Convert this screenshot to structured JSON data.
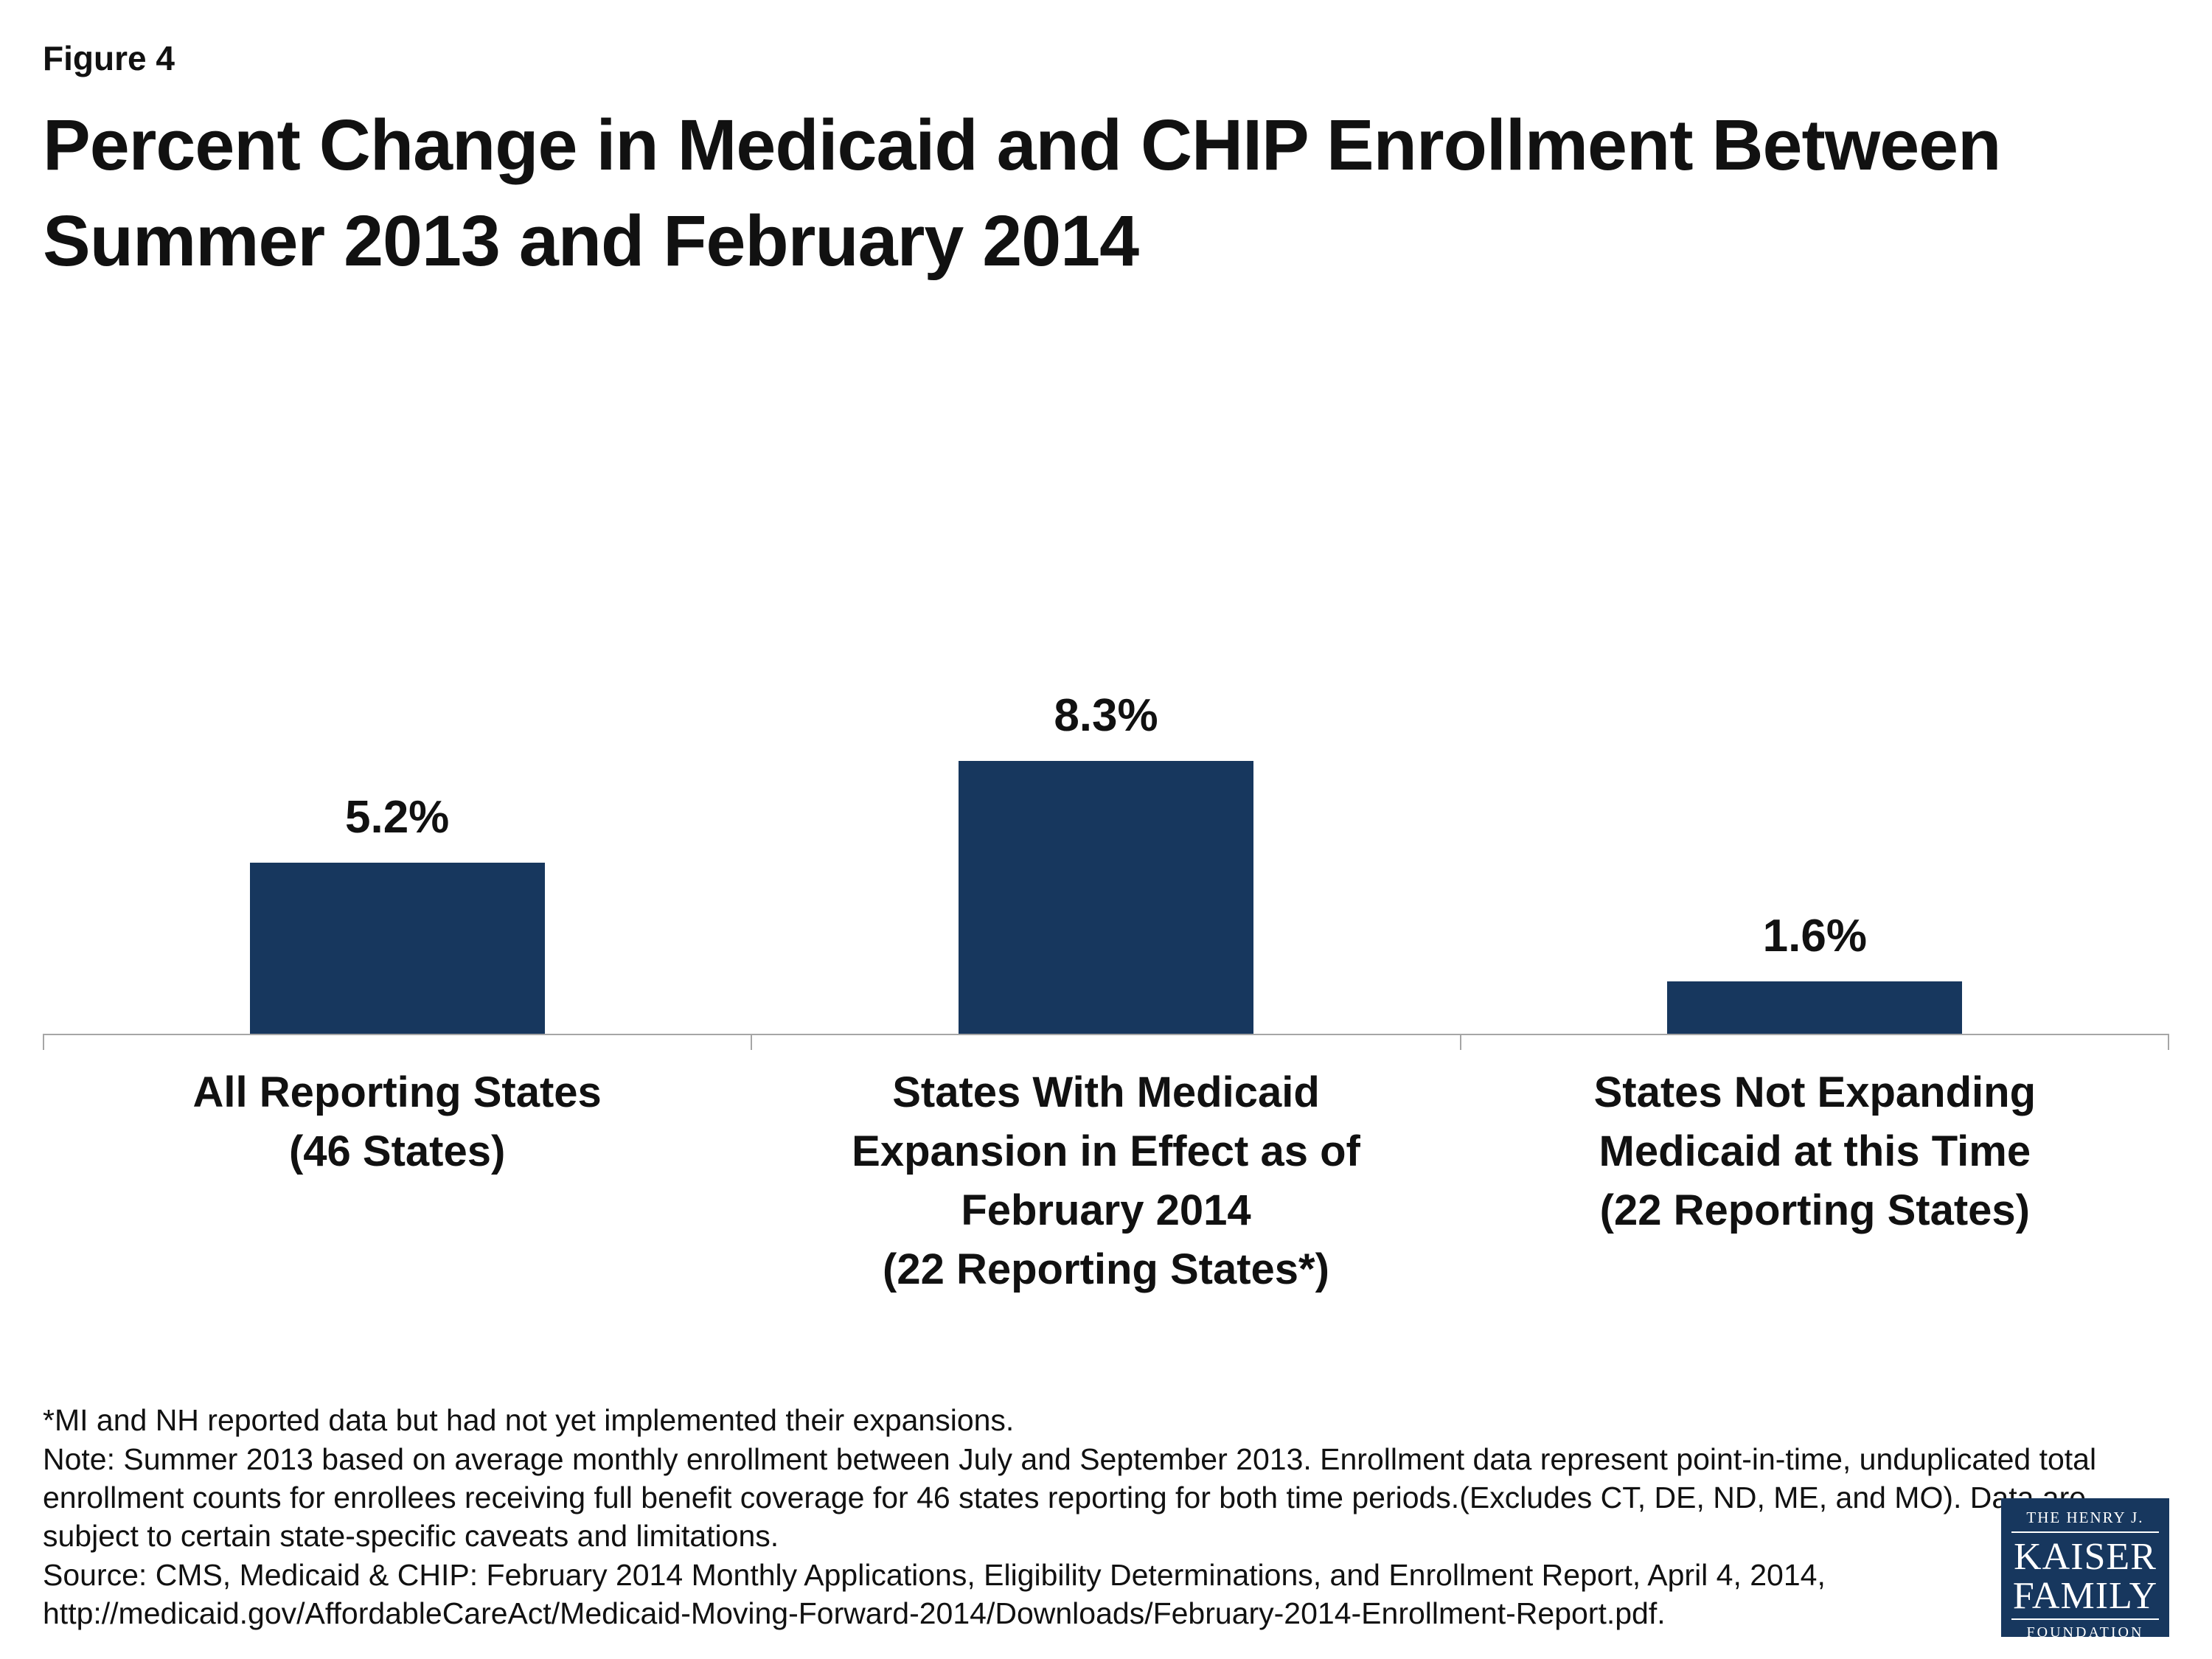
{
  "figure_label": "Figure 4",
  "title": "Percent Change in Medicaid and CHIP Enrollment Between Summer 2013 and February 2014",
  "chart_data": {
    "type": "bar",
    "categories": [
      [
        "All Reporting States",
        "(46 States)"
      ],
      [
        "States With Medicaid",
        "Expansion in Effect as of",
        "February 2014",
        "(22 Reporting States*)"
      ],
      [
        "States Not Expanding",
        "Medicaid at this Time",
        "(22 Reporting States)"
      ]
    ],
    "values": [
      5.2,
      8.3,
      1.6
    ],
    "data_labels": [
      "5.2%",
      "8.3%",
      "1.6%"
    ],
    "bar_color": "#17375E",
    "ylim": [
      0,
      10
    ],
    "grid": false,
    "legend": false,
    "title": "Percent Change in Medicaid and CHIP Enrollment Between Summer 2013 and February 2014",
    "xlabel": "",
    "ylabel": ""
  },
  "notes": {
    "asterisk": "*MI and NH reported data but had not yet implemented their expansions.",
    "note": "Note: Summer 2013 based on average monthly enrollment between July and September 2013. Enrollment data represent point-in-time, unduplicated total enrollment counts for enrollees receiving full benefit coverage for 46 states reporting for both time periods.(Excludes CT, DE, ND, ME, and MO). Data are subject to certain state-specific caveats and limitations.",
    "source": "Source: CMS, Medicaid & CHIP: February 2014 Monthly Applications, Eligibility Determinations, and Enrollment Report, April 4, 2014, http://medicaid.gov/AffordableCareAct/Medicaid-Moving-Forward-2014/Downloads/February-2014-Enrollment-Report.pdf."
  },
  "logo": {
    "line1": "THE HENRY J.",
    "line2": "KAISER",
    "line3": "FAMILY",
    "line4": "FOUNDATION",
    "bg_color": "#17375E"
  }
}
